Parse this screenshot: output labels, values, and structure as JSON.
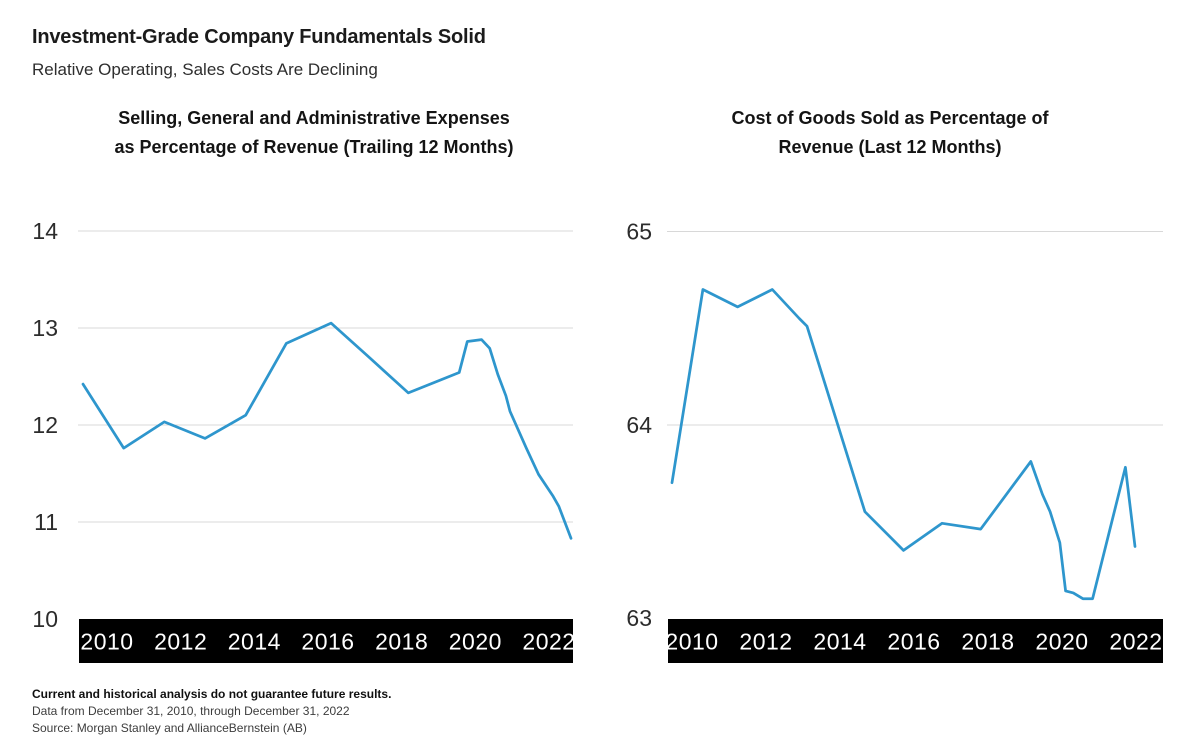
{
  "header": {
    "title": "Investment-Grade Company Fundamentals Solid",
    "subtitle": "Relative Operating, Sales Costs Are Declining"
  },
  "colors": {
    "line": "#2E96CD",
    "grid": "#D8D8D8",
    "band_background": "#000000",
    "band_text": "#FFFFFF",
    "text": "#1E1E1E"
  },
  "chart_data": [
    {
      "type": "line",
      "title": "Selling, General and Administrative Expenses as Percentage of Revenue (Trailing 12 Months)",
      "title_lines": [
        "Selling, General and Administrative Expenses",
        "as Percentage of Revenue (Trailing 12 Months)"
      ],
      "xlabel": "",
      "ylabel": "",
      "xlim": [
        2010,
        2022
      ],
      "ylim": [
        10,
        14
      ],
      "yticks": [
        10,
        11,
        12,
        13,
        14
      ],
      "xticks": [
        "2010",
        "2012",
        "2014",
        "2016",
        "2018",
        "2020",
        "2022"
      ],
      "grid": "horizontal",
      "legend": "none",
      "series": [
        {
          "name": "SG&A as % of revenue (trailing 12 months)",
          "x": [
            2010,
            2011,
            2012,
            2013,
            2014,
            2015,
            2016.1,
            2017,
            2018,
            2019.25,
            2019.45,
            2019.8,
            2020,
            2020.2,
            2020.4,
            2020.5,
            2020.9,
            2021.2,
            2021.55,
            2021.7,
            2022
          ],
          "values": [
            12.42,
            11.76,
            12.03,
            11.86,
            12.1,
            12.84,
            13.05,
            12.71,
            12.33,
            12.54,
            12.86,
            12.88,
            12.79,
            12.52,
            12.3,
            12.14,
            11.76,
            11.49,
            11.27,
            11.16,
            10.83
          ]
        }
      ]
    },
    {
      "type": "line",
      "title": "Cost of Goods Sold as Percentage of Revenue (Last 12 Months)",
      "title_lines": [
        "Cost of Goods Sold as Percentage of",
        "Revenue (Last 12 Months)"
      ],
      "xlabel": "",
      "ylabel": "",
      "xlim": [
        2010,
        2022
      ],
      "ylim": [
        63,
        65
      ],
      "yticks": [
        63,
        64,
        65
      ],
      "xticks": [
        "2010",
        "2012",
        "2014",
        "2016",
        "2018",
        "2020",
        "2022"
      ],
      "grid": "horizontal",
      "legend": "none",
      "series": [
        {
          "name": "COGS as % of revenue (last 12 months)",
          "x": [
            2010,
            2010.8,
            2011.7,
            2012.6,
            2013.3,
            2013.5,
            2015,
            2016,
            2017,
            2018,
            2019.3,
            2019.6,
            2019.8,
            2020.05,
            2020.2,
            2020.4,
            2020.65,
            2020.9,
            2021.75,
            2022
          ],
          "values": [
            63.7,
            64.7,
            64.61,
            64.7,
            64.55,
            64.51,
            63.55,
            63.35,
            63.49,
            63.46,
            63.81,
            63.64,
            63.55,
            63.39,
            63.14,
            63.13,
            63.1,
            63.1,
            63.78,
            63.37
          ]
        }
      ]
    }
  ],
  "footer": {
    "disclaimer": "Current and historical analysis do not guarantee future results.",
    "data_range": "Data from December 31, 2010, through December 31, 2022",
    "source": "Source: Morgan Stanley and AllianceBernstein (AB)"
  }
}
